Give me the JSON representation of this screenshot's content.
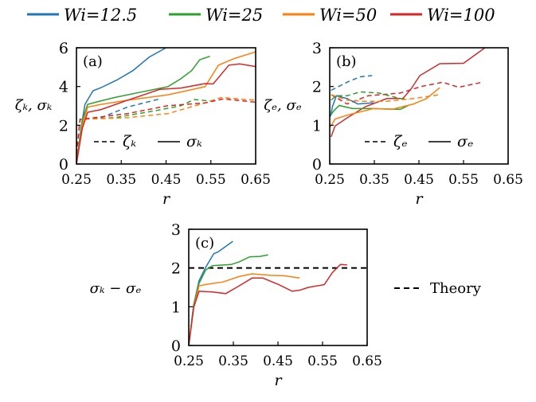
{
  "legend": [
    {
      "label": "Wi=12.5",
      "color": "#1f77b4"
    },
    {
      "label": "Wi=25",
      "color": "#2ca02c"
    },
    {
      "label": "Wi=50",
      "color": "#ff7f0e"
    },
    {
      "label": "Wi=100",
      "color": "#d62728"
    }
  ],
  "chart_data": [
    {
      "type": "line",
      "panel_label": "(a)",
      "xlabel": "r",
      "ylabel": "ζₖ, σₖ",
      "xlim": [
        0.25,
        0.65
      ],
      "ylim": [
        0,
        6
      ],
      "xticks": [
        "0.25",
        "0.35",
        "0.45",
        "0.55",
        "0.65"
      ],
      "yticks": [
        "0",
        "2",
        "4",
        "6"
      ],
      "style_legend": [
        {
          "style": "dashed",
          "label": "ζₖ"
        },
        {
          "style": "solid",
          "label": "σₖ"
        }
      ],
      "series": [
        {
          "name": "Wi=12.5 σₖ",
          "color": "#1f77b4",
          "style": "solid",
          "points": [
            [
              0.25,
              0
            ],
            [
              0.26,
              1.83
            ],
            [
              0.269,
              3.08
            ],
            [
              0.287,
              3.78
            ],
            [
              0.305,
              3.94
            ],
            [
              0.34,
              4.33
            ],
            [
              0.376,
              4.82
            ],
            [
              0.412,
              5.51
            ],
            [
              0.45,
              6.0
            ]
          ]
        },
        {
          "name": "Wi=12.5 ζₖ",
          "color": "#1f77b4",
          "style": "dashed",
          "points": [
            [
              0.25,
              0.5
            ],
            [
              0.258,
              2.3
            ],
            [
              0.305,
              2.39
            ],
            [
              0.364,
              2.94
            ],
            [
              0.436,
              3.36
            ]
          ]
        },
        {
          "name": "Wi=25 σₖ",
          "color": "#2ca02c",
          "style": "solid",
          "points": [
            [
              0.25,
              0
            ],
            [
              0.263,
              2.25
            ],
            [
              0.275,
              3.08
            ],
            [
              0.293,
              3.19
            ],
            [
              0.335,
              3.43
            ],
            [
              0.394,
              3.71
            ],
            [
              0.454,
              3.99
            ],
            [
              0.483,
              4.4
            ],
            [
              0.507,
              4.82
            ],
            [
              0.525,
              5.38
            ],
            [
              0.548,
              5.56
            ]
          ]
        },
        {
          "name": "Wi=25 ζₖ",
          "color": "#2ca02c",
          "style": "dashed",
          "points": [
            [
              0.25,
              0.5
            ],
            [
              0.258,
              2.3
            ],
            [
              0.335,
              2.39
            ],
            [
              0.424,
              2.74
            ],
            [
              0.483,
              3.01
            ],
            [
              0.513,
              3.33
            ],
            [
              0.549,
              3.25
            ]
          ]
        },
        {
          "name": "Wi=50 σₖ",
          "color": "#ff7f0e",
          "style": "solid",
          "points": [
            [
              0.25,
              0
            ],
            [
              0.263,
              2.0
            ],
            [
              0.275,
              2.94
            ],
            [
              0.305,
              3.08
            ],
            [
              0.364,
              3.29
            ],
            [
              0.454,
              3.57
            ],
            [
              0.537,
              3.99
            ],
            [
              0.567,
              5.1
            ],
            [
              0.602,
              5.44
            ],
            [
              0.65,
              5.79
            ]
          ]
        },
        {
          "name": "Wi=50 ζₖ",
          "color": "#ff7f0e",
          "style": "dashed",
          "points": [
            [
              0.25,
              0.5
            ],
            [
              0.258,
              2.3
            ],
            [
              0.364,
              2.39
            ],
            [
              0.454,
              2.6
            ],
            [
              0.537,
              3.15
            ],
            [
              0.573,
              3.43
            ],
            [
              0.65,
              3.29
            ]
          ]
        },
        {
          "name": "Wi=100 σₖ",
          "color": "#d62728",
          "style": "solid",
          "points": [
            [
              0.25,
              0
            ],
            [
              0.263,
              1.83
            ],
            [
              0.275,
              2.67
            ],
            [
              0.305,
              2.81
            ],
            [
              0.364,
              3.29
            ],
            [
              0.436,
              3.85
            ],
            [
              0.483,
              3.92
            ],
            [
              0.537,
              4.15
            ],
            [
              0.555,
              4.13
            ],
            [
              0.59,
              5.1
            ],
            [
              0.614,
              5.17
            ],
            [
              0.65,
              5.03
            ]
          ]
        },
        {
          "name": "Wi=100 ζₖ",
          "color": "#d62728",
          "style": "dashed",
          "points": [
            [
              0.25,
              0.5
            ],
            [
              0.258,
              2.3
            ],
            [
              0.364,
              2.6
            ],
            [
              0.454,
              3.01
            ],
            [
              0.537,
              3.15
            ],
            [
              0.578,
              3.36
            ],
            [
              0.65,
              3.19
            ]
          ]
        }
      ]
    },
    {
      "type": "line",
      "panel_label": "(b)",
      "xlabel": "r",
      "ylabel": "ζₑ, σₑ",
      "xlim": [
        0.25,
        0.65
      ],
      "ylim": [
        0,
        3
      ],
      "xticks": [
        "0.25",
        "0.35",
        "0.45",
        "0.55",
        "0.65"
      ],
      "yticks": [
        "0",
        "1",
        "2",
        "3"
      ],
      "style_legend": [
        {
          "style": "dashed",
          "label": "ζₑ"
        },
        {
          "style": "solid",
          "label": "σₑ"
        }
      ],
      "series": [
        {
          "name": "Wi=100 σₑ",
          "color": "#d62728",
          "style": "solid",
          "points": [
            [
              0.253,
              0.7
            ],
            [
              0.262,
              0.98
            ],
            [
              0.289,
              1.19
            ],
            [
              0.33,
              1.48
            ],
            [
              0.378,
              1.69
            ],
            [
              0.414,
              1.69
            ],
            [
              0.432,
              1.93
            ],
            [
              0.452,
              2.28
            ],
            [
              0.497,
              2.59
            ],
            [
              0.55,
              2.6
            ],
            [
              0.598,
              3.0
            ]
          ]
        },
        {
          "name": "Wi=100 ζₑ",
          "color": "#d62728",
          "style": "dashed",
          "points": [
            [
              0.253,
              1.79
            ],
            [
              0.289,
              1.55
            ],
            [
              0.336,
              1.76
            ],
            [
              0.408,
              1.83
            ],
            [
              0.455,
              2.0
            ],
            [
              0.503,
              2.11
            ],
            [
              0.539,
              1.98
            ],
            [
              0.592,
              2.11
            ]
          ]
        },
        {
          "name": "Wi=12.5 σₑ",
          "color": "#1f77b4",
          "style": "solid",
          "points": [
            [
              0.252,
              1.23
            ],
            [
              0.256,
              1.48
            ],
            [
              0.265,
              1.76
            ],
            [
              0.289,
              1.69
            ],
            [
              0.313,
              1.55
            ],
            [
              0.348,
              1.58
            ]
          ]
        },
        {
          "name": "Wi=12.5 ζₑ",
          "color": "#1f77b4",
          "style": "dashed",
          "points": [
            [
              0.253,
              1.9
            ],
            [
              0.265,
              1.97
            ],
            [
              0.289,
              2.11
            ],
            [
              0.318,
              2.25
            ],
            [
              0.345,
              2.28
            ]
          ]
        },
        {
          "name": "Wi=25 σₑ",
          "color": "#2ca02c",
          "style": "solid",
          "points": [
            [
              0.252,
              1.26
            ],
            [
              0.259,
              1.37
            ],
            [
              0.271,
              1.51
            ],
            [
              0.301,
              1.43
            ],
            [
              0.348,
              1.43
            ],
            [
              0.408,
              1.41
            ],
            [
              0.426,
              1.51
            ]
          ]
        },
        {
          "name": "Wi=25 ζₑ",
          "color": "#2ca02c",
          "style": "dashed",
          "points": [
            [
              0.253,
              1.65
            ],
            [
              0.265,
              1.76
            ],
            [
              0.289,
              1.76
            ],
            [
              0.318,
              1.86
            ],
            [
              0.36,
              1.83
            ],
            [
              0.408,
              1.69
            ],
            [
              0.426,
              1.67
            ]
          ]
        },
        {
          "name": "Wi=50 σₑ",
          "color": "#ff7f0e",
          "style": "solid",
          "points": [
            [
              0.251,
              0.95
            ],
            [
              0.262,
              1.16
            ],
            [
              0.289,
              1.26
            ],
            [
              0.348,
              1.43
            ],
            [
              0.39,
              1.41
            ],
            [
              0.438,
              1.55
            ],
            [
              0.467,
              1.69
            ],
            [
              0.497,
              1.97
            ]
          ]
        },
        {
          "name": "Wi=50 ζₑ",
          "color": "#ff7f0e",
          "style": "dashed",
          "points": [
            [
              0.253,
              1.79
            ],
            [
              0.289,
              1.65
            ],
            [
              0.324,
              1.62
            ],
            [
              0.378,
              1.62
            ],
            [
              0.438,
              1.69
            ],
            [
              0.497,
              1.79
            ]
          ]
        }
      ]
    },
    {
      "type": "line",
      "panel_label": "(c)",
      "xlabel": "r",
      "ylabel": "σₖ − σₑ",
      "xlim": [
        0.25,
        0.65
      ],
      "ylim": [
        0,
        3
      ],
      "xticks": [
        "0.25",
        "0.35",
        "0.45",
        "0.55",
        "0.65"
      ],
      "yticks": [
        "0",
        "1",
        "2",
        "3"
      ],
      "theory": {
        "label": "Theory",
        "value": 2
      },
      "series": [
        {
          "name": "Wi=12.5",
          "color": "#1f77b4",
          "style": "solid",
          "points": [
            [
              0.25,
              0
            ],
            [
              0.261,
              1.05
            ],
            [
              0.273,
              1.67
            ],
            [
              0.288,
              2.02
            ],
            [
              0.306,
              2.37
            ],
            [
              0.315,
              2.41
            ],
            [
              0.349,
              2.69
            ]
          ]
        },
        {
          "name": "Wi=25",
          "color": "#2ca02c",
          "style": "solid",
          "points": [
            [
              0.25,
              0
            ],
            [
              0.261,
              1.05
            ],
            [
              0.273,
              1.6
            ],
            [
              0.288,
              1.95
            ],
            [
              0.303,
              2.06
            ],
            [
              0.345,
              2.09
            ],
            [
              0.363,
              2.16
            ],
            [
              0.387,
              2.29
            ],
            [
              0.41,
              2.3
            ],
            [
              0.428,
              2.34
            ]
          ]
        },
        {
          "name": "Wi=50",
          "color": "#ff7f0e",
          "style": "solid",
          "points": [
            [
              0.25,
              0
            ],
            [
              0.261,
              0.98
            ],
            [
              0.273,
              1.54
            ],
            [
              0.291,
              1.58
            ],
            [
              0.327,
              1.64
            ],
            [
              0.363,
              1.78
            ],
            [
              0.392,
              1.85
            ],
            [
              0.434,
              1.81
            ],
            [
              0.464,
              1.8
            ],
            [
              0.499,
              1.74
            ]
          ]
        },
        {
          "name": "Wi=100",
          "color": "#d62728",
          "style": "solid",
          "points": [
            [
              0.25,
              0
            ],
            [
              0.261,
              0.98
            ],
            [
              0.273,
              1.4
            ],
            [
              0.303,
              1.38
            ],
            [
              0.333,
              1.34
            ],
            [
              0.363,
              1.54
            ],
            [
              0.392,
              1.74
            ],
            [
              0.416,
              1.74
            ],
            [
              0.452,
              1.57
            ],
            [
              0.482,
              1.4
            ],
            [
              0.5,
              1.43
            ],
            [
              0.518,
              1.5
            ],
            [
              0.554,
              1.57
            ],
            [
              0.572,
              1.88
            ],
            [
              0.59,
              2.09
            ],
            [
              0.605,
              2.08
            ]
          ]
        }
      ]
    }
  ]
}
